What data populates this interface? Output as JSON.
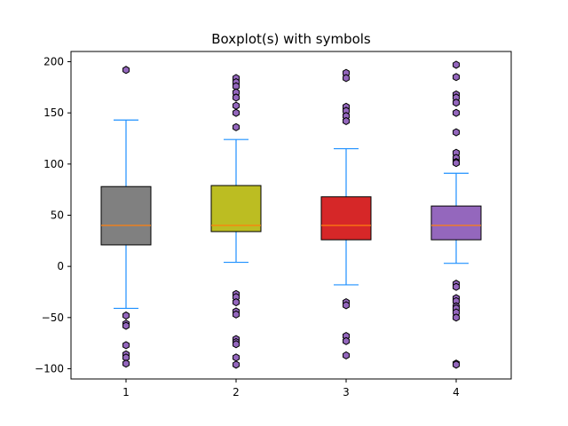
{
  "chart_data": {
    "type": "boxplot",
    "title": "Boxplot(s) with symbols",
    "xlabel": "",
    "ylabel": "",
    "ylim": [
      -110,
      210
    ],
    "yticks": [
      -100,
      -50,
      0,
      50,
      100,
      150,
      200
    ],
    "grid": false,
    "categories": [
      "1",
      "2",
      "3",
      "4"
    ],
    "whisker_color": "#1e90ff",
    "median_color": "#ff7f0e",
    "flier_color": "#9467bd",
    "boxes": [
      {
        "label": "1",
        "color": "#808080",
        "q1": 21,
        "median": 40,
        "q3": 78,
        "whisker_low": -41,
        "whisker_high": 143,
        "fliers": [
          192,
          -48,
          -56,
          -58,
          -77,
          -86,
          -89,
          -95
        ]
      },
      {
        "label": "2",
        "color": "#bcbd22",
        "q1": 34,
        "median": 40,
        "q3": 79,
        "whisker_low": 4,
        "whisker_high": 124,
        "fliers": [
          184,
          180,
          176,
          170,
          165,
          157,
          150,
          136,
          -27,
          -30,
          -35,
          -44,
          -47,
          -71,
          -74,
          -76,
          -89,
          -96
        ]
      },
      {
        "label": "3",
        "color": "#d62728",
        "q1": 26,
        "median": 40,
        "q3": 68,
        "whisker_low": -18,
        "whisker_high": 115,
        "fliers": [
          189,
          184,
          156,
          152,
          147,
          142,
          -35,
          -38,
          -68,
          -73,
          -87
        ]
      },
      {
        "label": "4",
        "color": "#9467bd",
        "q1": 26,
        "median": 40,
        "q3": 59,
        "whisker_low": 3,
        "whisker_high": 91,
        "fliers": [
          197,
          185,
          168,
          165,
          160,
          150,
          131,
          111,
          106,
          102,
          101,
          -17,
          -20,
          -31,
          -34,
          -39,
          -41,
          -45,
          -50,
          -95,
          -96
        ]
      }
    ]
  }
}
